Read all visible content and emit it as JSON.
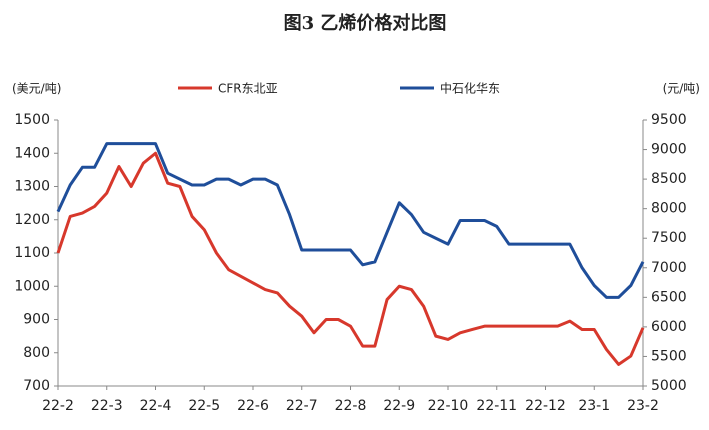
{
  "chart_data": {
    "type": "line",
    "title": "图3  乙烯价格对比图",
    "y_label": "(美元/吨)",
    "y2_label": "(元/吨)",
    "categories": [
      "22-2",
      null,
      null,
      null,
      "22-3",
      null,
      null,
      null,
      "22-4",
      null,
      null,
      null,
      "22-5",
      null,
      null,
      null,
      "22-6",
      null,
      null,
      null,
      "22-7",
      null,
      null,
      null,
      "22-8",
      null,
      null,
      null,
      "22-9",
      null,
      null,
      null,
      "22-10",
      null,
      null,
      null,
      "22-11",
      null,
      null,
      null,
      "22-12",
      null,
      null,
      null,
      "23-1",
      null,
      null,
      null,
      "23-2"
    ],
    "series": [
      {
        "name": "CFR东北亚",
        "color": "#d7382c",
        "values": [
          1100,
          1210,
          1220,
          1240,
          1280,
          1360,
          1300,
          1370,
          1400,
          1310,
          1300,
          1210,
          1170,
          1100,
          1050,
          1030,
          1010,
          990,
          980,
          940,
          910,
          860,
          900,
          900,
          880,
          820,
          820,
          960,
          1000,
          990,
          940,
          850,
          840,
          860,
          870,
          880,
          880,
          880,
          880,
          880,
          880,
          880,
          895,
          870,
          870,
          810,
          765,
          790,
          875
        ]
      },
      {
        "name": "中石化华东",
        "color": "#1f4e9a",
        "axis": "y2",
        "values": [
          7950,
          8400,
          8700,
          8700,
          9100,
          9100,
          9100,
          9100,
          9100,
          8600,
          8500,
          8400,
          8400,
          8500,
          8500,
          8400,
          8500,
          8500,
          8400,
          7900,
          7300,
          7300,
          7300,
          7300,
          7300,
          7050,
          7100,
          7600,
          8100,
          7900,
          7600,
          7500,
          7400,
          7800,
          7800,
          7800,
          7700,
          7400,
          7400,
          7400,
          7400,
          7400,
          7400,
          7000,
          6700,
          6500,
          6500,
          6700,
          7100
        ]
      }
    ],
    "ylim": [
      700,
      1500
    ],
    "yticks": [
      700,
      800,
      900,
      1000,
      1100,
      1200,
      1300,
      1400,
      1500
    ],
    "y2lim": [
      5000,
      9500
    ],
    "y2ticks": [
      5000,
      5500,
      6000,
      6500,
      7000,
      7500,
      8000,
      8500,
      9000,
      9500
    ],
    "legend": "top"
  }
}
